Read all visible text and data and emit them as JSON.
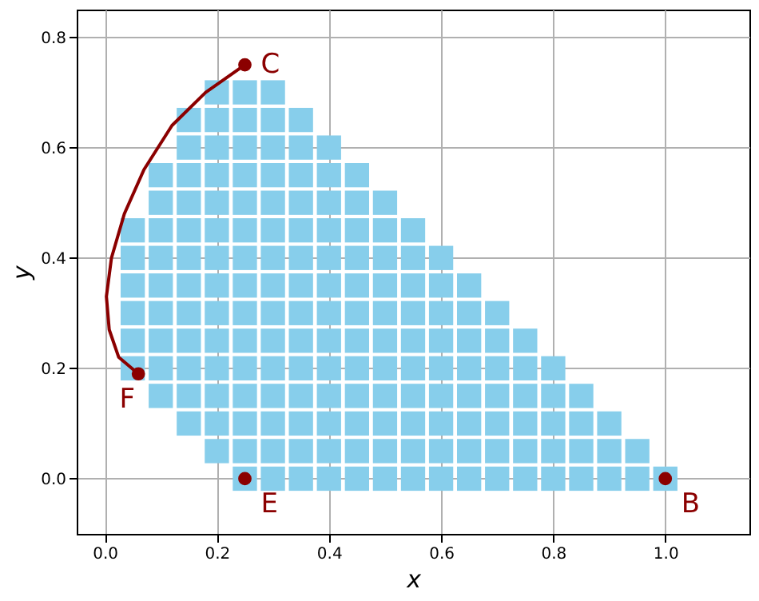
{
  "chart_data": {
    "type": "scatter",
    "xlabel": "x",
    "ylabel": "y",
    "xlim": [
      -0.05,
      1.15
    ],
    "ylim": [
      -0.1,
      0.85
    ],
    "xticks": [
      {
        "value": 0,
        "label": "0.0"
      },
      0.2,
      0.4,
      0.6,
      0.8,
      {
        "value": 1,
        "label": "1.0"
      }
    ],
    "yticks": [
      {
        "value": 0,
        "label": "0.0"
      },
      0.2,
      0.4,
      0.6,
      0.8
    ],
    "grid": true,
    "series": [
      {
        "color": "#87ceeb",
        "marker": "square",
        "x": [
          0.25,
          0.3,
          0.35,
          0.4,
          0.45,
          0.5,
          0.55,
          0.6,
          0.65,
          0.7,
          0.75,
          0.8,
          0.85,
          0.9,
          0.95,
          1.0,
          0.2,
          0.25,
          0.3,
          0.35,
          0.4,
          0.45,
          0.5,
          0.55,
          0.6,
          0.65,
          0.7,
          0.75,
          0.8,
          0.85,
          0.9,
          0.95,
          0.15,
          0.2,
          0.25,
          0.3,
          0.35,
          0.4,
          0.45,
          0.5,
          0.55,
          0.6,
          0.65,
          0.7,
          0.75,
          0.8,
          0.85,
          0.9,
          0.1,
          0.15,
          0.2,
          0.25,
          0.3,
          0.35,
          0.4,
          0.45,
          0.5,
          0.55,
          0.6,
          0.65,
          0.7,
          0.75,
          0.8,
          0.85,
          0.05,
          0.1,
          0.15,
          0.2,
          0.25,
          0.3,
          0.35,
          0.4,
          0.45,
          0.5,
          0.55,
          0.6,
          0.65,
          0.7,
          0.75,
          0.8,
          0.05,
          0.1,
          0.15,
          0.2,
          0.25,
          0.3,
          0.35,
          0.4,
          0.45,
          0.5,
          0.55,
          0.6,
          0.65,
          0.7,
          0.75,
          0.05,
          0.1,
          0.15,
          0.2,
          0.25,
          0.3,
          0.35,
          0.4,
          0.45,
          0.5,
          0.55,
          0.6,
          0.65,
          0.7,
          0.05,
          0.1,
          0.15,
          0.2,
          0.25,
          0.3,
          0.35,
          0.4,
          0.45,
          0.5,
          0.55,
          0.6,
          0.65,
          0.05,
          0.1,
          0.15,
          0.2,
          0.25,
          0.3,
          0.35,
          0.4,
          0.45,
          0.5,
          0.55,
          0.6,
          0.05,
          0.1,
          0.15,
          0.2,
          0.25,
          0.3,
          0.35,
          0.4,
          0.45,
          0.5,
          0.55,
          0.1,
          0.15,
          0.2,
          0.25,
          0.3,
          0.35,
          0.4,
          0.45,
          0.5,
          0.1,
          0.15,
          0.2,
          0.25,
          0.3,
          0.35,
          0.4,
          0.45,
          0.15,
          0.2,
          0.25,
          0.3,
          0.35,
          0.4,
          0.15,
          0.2,
          0.25,
          0.3,
          0.35,
          0.2,
          0.25,
          0.3
        ],
        "values": [
          0,
          0,
          0,
          0,
          0,
          0,
          0,
          0,
          0,
          0,
          0,
          0,
          0,
          0,
          0,
          0,
          0.05,
          0.05,
          0.05,
          0.05,
          0.05,
          0.05,
          0.05,
          0.05,
          0.05,
          0.05,
          0.05,
          0.05,
          0.05,
          0.05,
          0.05,
          0.05,
          0.1,
          0.1,
          0.1,
          0.1,
          0.1,
          0.1,
          0.1,
          0.1,
          0.1,
          0.1,
          0.1,
          0.1,
          0.1,
          0.1,
          0.1,
          0.1,
          0.15,
          0.15,
          0.15,
          0.15,
          0.15,
          0.15,
          0.15,
          0.15,
          0.15,
          0.15,
          0.15,
          0.15,
          0.15,
          0.15,
          0.15,
          0.15,
          0.2,
          0.2,
          0.2,
          0.2,
          0.2,
          0.2,
          0.2,
          0.2,
          0.2,
          0.2,
          0.2,
          0.2,
          0.2,
          0.2,
          0.2,
          0.2,
          0.25,
          0.25,
          0.25,
          0.25,
          0.25,
          0.25,
          0.25,
          0.25,
          0.25,
          0.25,
          0.25,
          0.25,
          0.25,
          0.25,
          0.25,
          0.3,
          0.3,
          0.3,
          0.3,
          0.3,
          0.3,
          0.3,
          0.3,
          0.3,
          0.3,
          0.3,
          0.3,
          0.3,
          0.3,
          0.35,
          0.35,
          0.35,
          0.35,
          0.35,
          0.35,
          0.35,
          0.35,
          0.35,
          0.35,
          0.35,
          0.35,
          0.35,
          0.4,
          0.4,
          0.4,
          0.4,
          0.4,
          0.4,
          0.4,
          0.4,
          0.4,
          0.4,
          0.4,
          0.4,
          0.45,
          0.45,
          0.45,
          0.45,
          0.45,
          0.45,
          0.45,
          0.45,
          0.45,
          0.45,
          0.45,
          0.5,
          0.5,
          0.5,
          0.5,
          0.5,
          0.5,
          0.5,
          0.5,
          0.5,
          0.55,
          0.55,
          0.55,
          0.55,
          0.55,
          0.55,
          0.55,
          0.55,
          0.6,
          0.6,
          0.6,
          0.6,
          0.6,
          0.6,
          0.65,
          0.65,
          0.65,
          0.65,
          0.65,
          0.7,
          0.7,
          0.7
        ]
      },
      {
        "type": "line",
        "color": "#8b0000",
        "line_style": "solid",
        "x": [
          0.25,
          0.18,
          0.12,
          0.07,
          0.035,
          0.012,
          0.003,
          0.008,
          0.025,
          0.06
        ],
        "values": [
          0.75,
          0.7,
          0.64,
          0.56,
          0.48,
          0.4,
          0.33,
          0.27,
          0.22,
          0.19
        ]
      },
      {
        "type": "scatter",
        "color": "#8b0000",
        "marker": "circle",
        "x": [
          0.25,
          0.06,
          0.25,
          1.0
        ],
        "values": [
          0.75,
          0.19,
          0,
          0
        ]
      }
    ],
    "annotations": [
      {
        "text": "C",
        "x": 0.25,
        "y": 0.75
      },
      {
        "text": "F",
        "x": 0.06,
        "y": 0.19
      },
      {
        "text": "E",
        "x": 0.25,
        "y": 0
      },
      {
        "text": "B",
        "x": 1.0,
        "y": 0
      }
    ]
  }
}
